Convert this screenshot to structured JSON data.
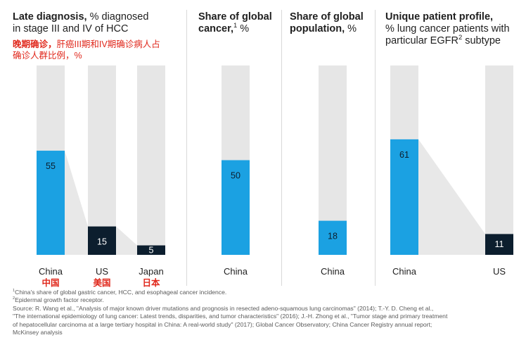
{
  "colors": {
    "blue": "#1ba1e2",
    "navy": "#0c1e2e",
    "gray_track": "#e6e6e6",
    "connector": "#e8e8e8",
    "red": "#e0281c"
  },
  "panels": [
    {
      "title_bold": "Late diagnosis,",
      "title_rest": " % diagnosed",
      "title_line2": "in stage III and IV of HCC",
      "note_bold": "晚期确诊，",
      "note_rest": "肝癌III期和IV期确诊病人占",
      "note_line2": "确诊人群比例，%"
    },
    {
      "title_bold": "Share of global",
      "title_line2_bold": "cancer,",
      "title_sup": "1",
      "title_rest": " %"
    },
    {
      "title_bold": "Share of global",
      "title_line2_bold": "population,",
      "title_rest": " %"
    },
    {
      "title_bold": "Unique patient profile,",
      "title_line2": "% lung cancer patients with",
      "title_line3": "particular EGFR",
      "title_sup": "2",
      "title_line3_rest": " subtype"
    }
  ],
  "chart_data": [
    {
      "type": "bar",
      "title": "Late diagnosis, % diagnosed in stage III and IV of HCC",
      "categories": [
        "China",
        "US",
        "Japan"
      ],
      "categories_cn": [
        "中国",
        "美国",
        "日本"
      ],
      "values": [
        55,
        15,
        5
      ],
      "ylim": [
        0,
        100
      ],
      "colors": [
        "#1ba1e2",
        "#0c1e2e",
        "#0c1e2e"
      ]
    },
    {
      "type": "bar",
      "title": "Share of global cancer, %",
      "categories": [
        "China"
      ],
      "values": [
        50
      ],
      "ylim": [
        0,
        100
      ],
      "colors": [
        "#1ba1e2"
      ]
    },
    {
      "type": "bar",
      "title": "Share of global population, %",
      "categories": [
        "China"
      ],
      "values": [
        18
      ],
      "ylim": [
        0,
        100
      ],
      "colors": [
        "#1ba1e2"
      ]
    },
    {
      "type": "bar",
      "title": "Unique patient profile, % lung cancer patients with particular EGFR subtype",
      "categories": [
        "China",
        "US"
      ],
      "values": [
        61,
        11
      ],
      "ylim": [
        0,
        100
      ],
      "colors": [
        "#1ba1e2",
        "#0c1e2e"
      ]
    }
  ],
  "footnotes": {
    "fn1_sup": "1",
    "fn1": "China's share of global gastric cancer, HCC, and esophageal cancer incidence.",
    "fn2_sup": "2",
    "fn2": "Epidermal growth factor receptor.",
    "source_1": "Source: R. Wang et al., \"Analysis of major known driver mutations and prognosis in resected adeno-squamous lung carcinomas\" (2014); T.-Y. D. Cheng et al.,",
    "source_2": "\"The international epidemiology of lung cancer: Latest trends, disparities, and tumor characteristics\" (2016); J.-H. Zhong et al., \"Tumor stage and primary treatment",
    "source_3": "of hepatocellular carcinoma at a large tertiary hospital in China: A real-world study\" (2017); Global Cancer Observatory; China Cancer Registry annual report;",
    "source_4": "McKinsey analysis"
  }
}
